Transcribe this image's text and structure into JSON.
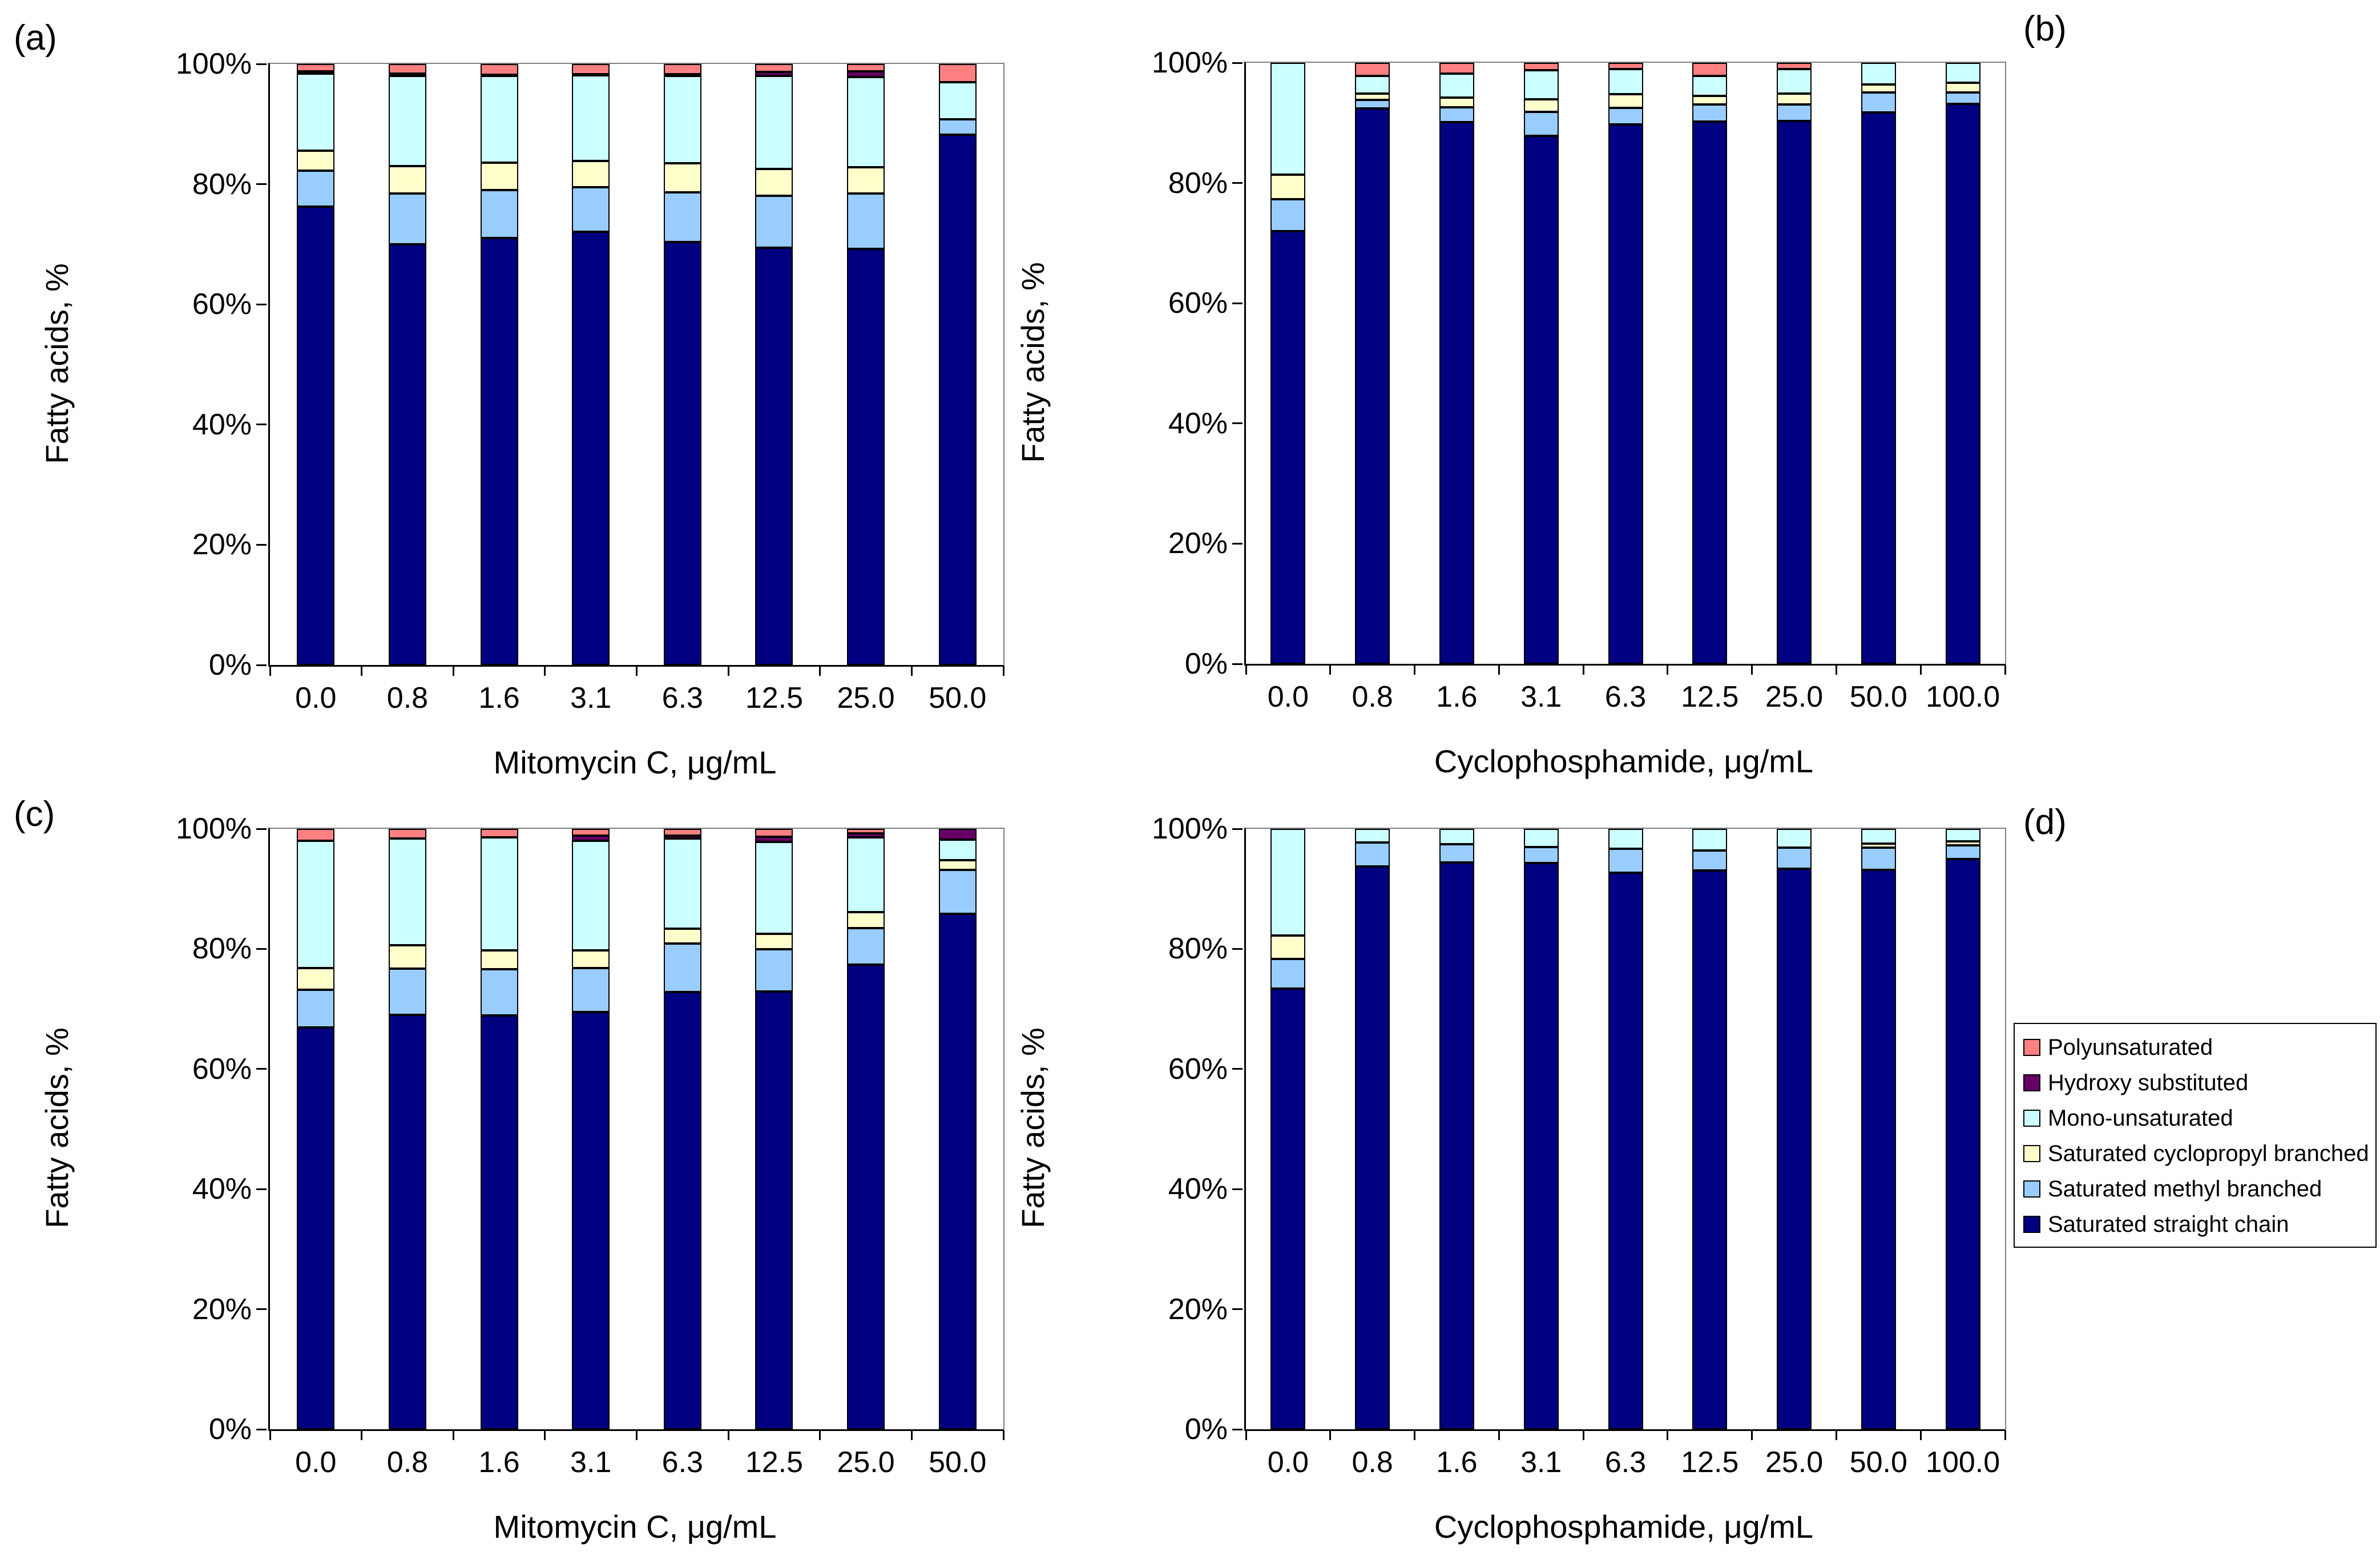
{
  "figure": {
    "background": "#FFFFFF",
    "plot_border_color": "#808080",
    "axis_color": "#000000",
    "bar_outline_color": "#000000"
  },
  "legend": {
    "position": "right-middle",
    "items": [
      {
        "label": "Polyunsaturated",
        "color": "#FF8080"
      },
      {
        "label": "Hydroxy substituted",
        "color": "#660066"
      },
      {
        "label": "Mono-unsaturated",
        "color": "#CCFFFF"
      },
      {
        "label": "Saturated cyclopropyl branched",
        "color": "#FFFFCC"
      },
      {
        "label": "Saturated methyl branched",
        "color": "#99CCFF"
      },
      {
        "label": "Saturated straight chain",
        "color": "#000080"
      }
    ]
  },
  "chart_data": [
    {
      "type": "bar",
      "stacked": true,
      "panel_label": "(a)",
      "xlabel": "Mitomycin C, μg/mL",
      "ylabel": "Fatty acids, %",
      "categories": [
        "0.0",
        "0.8",
        "1.6",
        "3.1",
        "6.3",
        "12.5",
        "25.0",
        "50.0"
      ],
      "yticks": [
        "0%",
        "20%",
        "40%",
        "60%",
        "80%",
        "100%"
      ],
      "ylim": [
        0,
        100
      ],
      "grid": false,
      "series": [
        {
          "name": "Saturated straight chain",
          "color": "#000080",
          "values": [
            76.3,
            70.0,
            71.0,
            72.1,
            70.4,
            69.4,
            69.2,
            88.2
          ]
        },
        {
          "name": "Saturated methyl branched",
          "color": "#99CCFF",
          "values": [
            5.9,
            8.4,
            8.0,
            7.4,
            8.2,
            8.7,
            9.2,
            2.6
          ]
        },
        {
          "name": "Saturated cyclopropyl branched",
          "color": "#FFFFCC",
          "values": [
            3.4,
            4.6,
            4.6,
            4.4,
            4.9,
            4.4,
            4.4,
            0.0
          ]
        },
        {
          "name": "Mono-unsaturated",
          "color": "#CCFFFF",
          "values": [
            12.8,
            15.0,
            14.4,
            14.2,
            14.5,
            15.5,
            15.0,
            6.2
          ]
        },
        {
          "name": "Hydroxy substituted",
          "color": "#660066",
          "values": [
            0.4,
            0.4,
            0.2,
            0.2,
            0.3,
            0.7,
            1.0,
            0.0
          ]
        },
        {
          "name": "Polyunsaturated",
          "color": "#FF8080",
          "values": [
            1.2,
            1.6,
            1.8,
            1.7,
            1.7,
            1.3,
            1.2,
            3.0
          ]
        }
      ]
    },
    {
      "type": "bar",
      "stacked": true,
      "panel_label": "(b)",
      "xlabel": "Cyclophosphamide, μg/mL",
      "ylabel": "Fatty acids, %",
      "categories": [
        "0.0",
        "0.8",
        "1.6",
        "3.1",
        "6.3",
        "12.5",
        "25.0",
        "50.0",
        "100.0"
      ],
      "yticks": [
        "0%",
        "20%",
        "40%",
        "60%",
        "80%",
        "100%"
      ],
      "ylim": [
        0,
        100
      ],
      "grid": false,
      "series": [
        {
          "name": "Saturated straight chain",
          "color": "#000080",
          "values": [
            72.0,
            92.4,
            90.1,
            87.8,
            89.7,
            90.2,
            90.3,
            91.7,
            93.2
          ]
        },
        {
          "name": "Saturated methyl branched",
          "color": "#99CCFF",
          "values": [
            5.3,
            1.4,
            2.5,
            4.0,
            2.8,
            2.9,
            2.8,
            3.4,
            1.9
          ]
        },
        {
          "name": "Saturated cyclopropyl branched",
          "color": "#FFFFCC",
          "values": [
            4.1,
            1.1,
            1.6,
            2.1,
            2.3,
            1.4,
            1.8,
            1.3,
            1.6
          ]
        },
        {
          "name": "Mono-unsaturated",
          "color": "#CCFFFF",
          "values": [
            18.6,
            2.9,
            4.0,
            4.9,
            4.2,
            3.3,
            4.1,
            3.6,
            3.3
          ]
        },
        {
          "name": "Hydroxy substituted",
          "color": "#660066",
          "values": [
            0,
            0,
            0,
            0,
            0,
            0,
            0,
            0,
            0
          ]
        },
        {
          "name": "Polyunsaturated",
          "color": "#FF8080",
          "values": [
            0.0,
            2.2,
            1.8,
            1.2,
            1.0,
            2.2,
            1.0,
            0.0,
            0.0
          ]
        }
      ]
    },
    {
      "type": "bar",
      "stacked": true,
      "panel_label": "(c)",
      "xlabel": "Mitomycin C, μg/mL",
      "ylabel": "Fatty acids, %",
      "categories": [
        "0.0",
        "0.8",
        "1.6",
        "3.1",
        "6.3",
        "12.5",
        "25.0",
        "50.0"
      ],
      "yticks": [
        "0%",
        "20%",
        "40%",
        "60%",
        "80%",
        "100%"
      ],
      "ylim": [
        0,
        100
      ],
      "grid": false,
      "series": [
        {
          "name": "Saturated straight chain",
          "color": "#000080",
          "values": [
            66.9,
            69.0,
            68.9,
            69.5,
            72.8,
            72.9,
            77.4,
            85.8
          ]
        },
        {
          "name": "Saturated methyl branched",
          "color": "#99CCFF",
          "values": [
            6.3,
            7.7,
            7.7,
            7.3,
            8.1,
            7.0,
            6.1,
            7.4
          ]
        },
        {
          "name": "Saturated cyclopropyl branched",
          "color": "#FFFFCC",
          "values": [
            3.6,
            3.9,
            3.2,
            3.0,
            2.5,
            2.6,
            2.6,
            1.6
          ]
        },
        {
          "name": "Mono-unsaturated",
          "color": "#CCFFFF",
          "values": [
            21.2,
            17.8,
            18.8,
            18.2,
            15.0,
            15.3,
            12.5,
            3.4
          ]
        },
        {
          "name": "Hydroxy substituted",
          "color": "#660066",
          "values": [
            0.0,
            0.0,
            0.0,
            0.9,
            0.5,
            0.9,
            0.6,
            1.8
          ]
        },
        {
          "name": "Polyunsaturated",
          "color": "#FF8080",
          "values": [
            2.0,
            1.6,
            1.4,
            1.1,
            1.1,
            1.3,
            0.8,
            0.0
          ]
        }
      ]
    },
    {
      "type": "bar",
      "stacked": true,
      "panel_label": "(d)",
      "xlabel": "Cyclophosphamide, μg/mL",
      "ylabel": "Fatty acids, %",
      "categories": [
        "0.0",
        "0.8",
        "1.6",
        "3.1",
        "6.3",
        "12.5",
        "25.0",
        "50.0",
        "100.0"
      ],
      "yticks": [
        "0%",
        "20%",
        "40%",
        "60%",
        "80%",
        "100%"
      ],
      "ylim": [
        0,
        100
      ],
      "grid": false,
      "series": [
        {
          "name": "Saturated straight chain",
          "color": "#000080",
          "values": [
            73.4,
            93.7,
            94.4,
            94.3,
            92.7,
            93.1,
            93.3,
            93.2,
            95.0
          ]
        },
        {
          "name": "Saturated methyl branched",
          "color": "#99CCFF",
          "values": [
            4.9,
            4.0,
            3.0,
            2.7,
            4.0,
            3.3,
            3.6,
            3.7,
            2.2
          ]
        },
        {
          "name": "Saturated cyclopropyl branched",
          "color": "#FFFFCC",
          "values": [
            3.9,
            0.0,
            0.0,
            0.0,
            0.0,
            0.0,
            0.0,
            0.6,
            0.7
          ]
        },
        {
          "name": "Mono-unsaturated",
          "color": "#CCFFFF",
          "values": [
            17.8,
            2.3,
            2.6,
            3.0,
            3.3,
            3.6,
            3.1,
            2.5,
            2.1
          ]
        },
        {
          "name": "Hydroxy substituted",
          "color": "#660066",
          "values": [
            0,
            0,
            0,
            0,
            0,
            0,
            0,
            0,
            0
          ]
        },
        {
          "name": "Polyunsaturated",
          "color": "#FF8080",
          "values": [
            0,
            0,
            0,
            0,
            0,
            0,
            0,
            0,
            0
          ]
        }
      ]
    }
  ]
}
